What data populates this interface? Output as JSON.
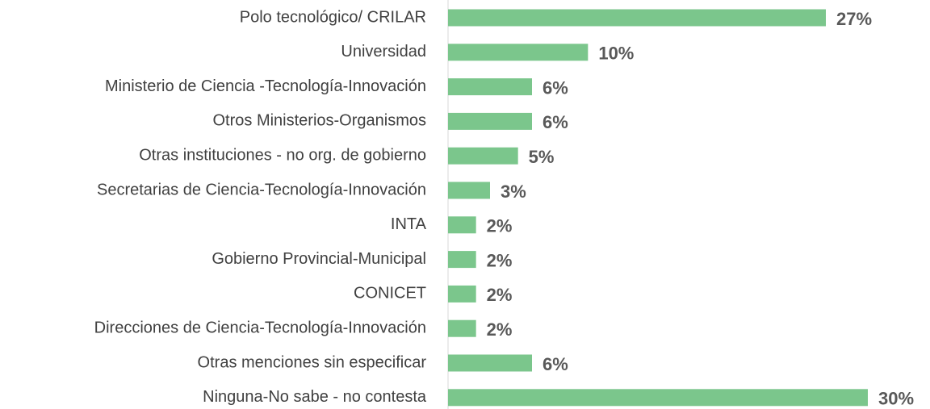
{
  "chart_data": {
    "type": "bar",
    "orientation": "horizontal",
    "categories": [
      "Polo tecnológico/ CRILAR",
      "Universidad",
      "Ministerio de Ciencia -Tecnología-Innovación",
      "Otros Ministerios-Organismos",
      "Otras instituciones - no org. de gobierno",
      "Secretarias de Ciencia-Tecnología-Innovación",
      "INTA",
      "Gobierno Provincial-Municipal",
      "CONICET",
      "Direcciones de Ciencia-Tecnología-Innovación",
      "Otras menciones sin especificar",
      "Ninguna-No sabe - no contesta"
    ],
    "values": [
      27,
      10,
      6,
      6,
      5,
      3,
      2,
      2,
      2,
      2,
      6,
      30
    ],
    "value_labels": [
      "27%",
      "10%",
      "6%",
      "6%",
      "5%",
      "3%",
      "2%",
      "2%",
      "2%",
      "2%",
      "6%",
      "30%"
    ],
    "color": "#7bc68c"
  }
}
